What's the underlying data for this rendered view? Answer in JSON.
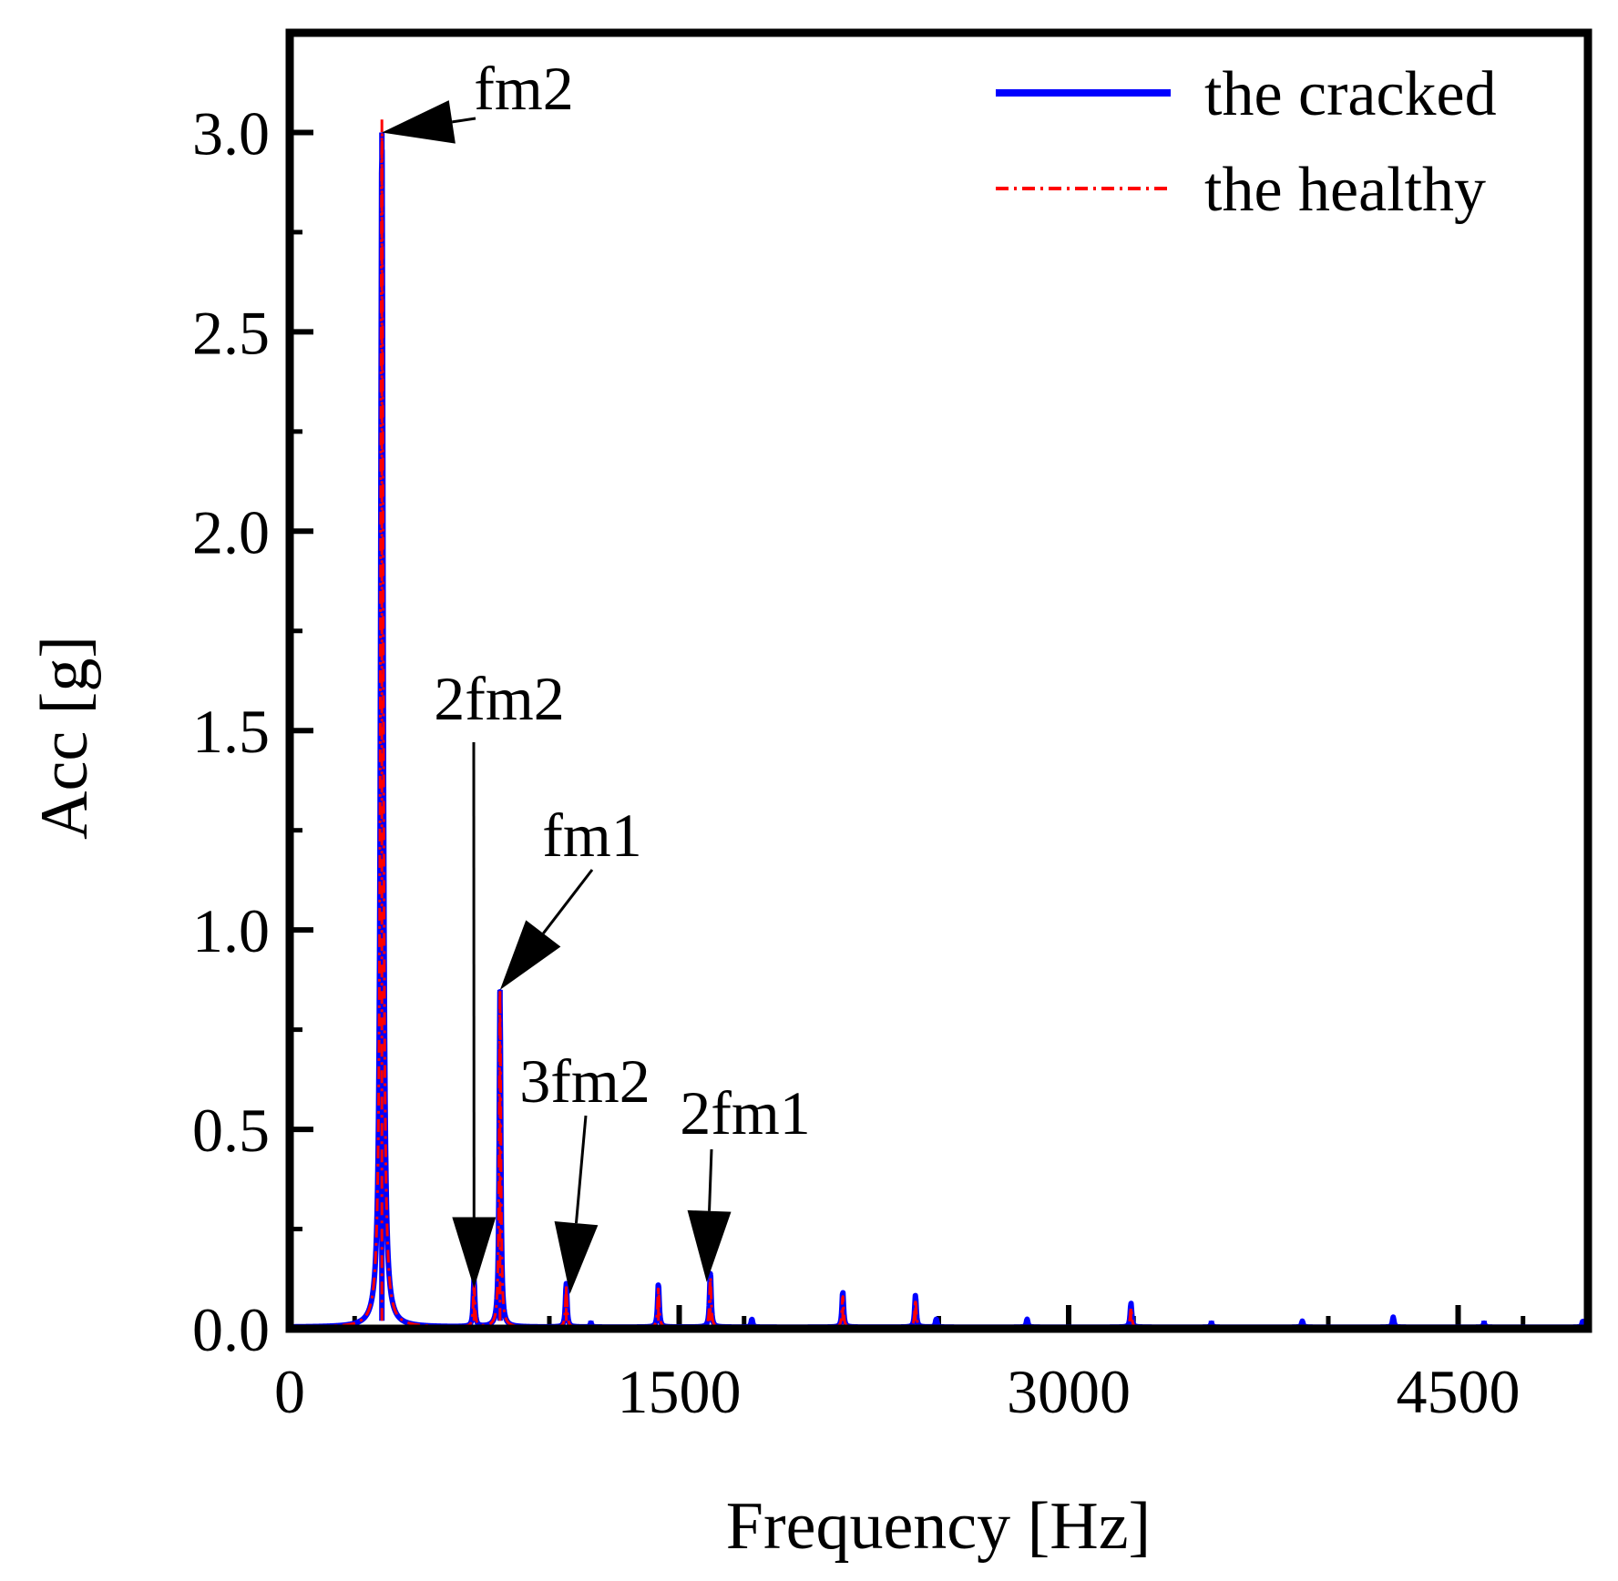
{
  "chart_data": {
    "type": "line",
    "title": "",
    "xlabel": "Frequency [Hz]",
    "ylabel": "Acc [g]",
    "xlim": [
      0,
      5000
    ],
    "ylim": [
      0,
      3.25
    ],
    "xticks": [
      0,
      1500,
      3000,
      4500
    ],
    "xtick_labels": [
      "0",
      "1500",
      "3000",
      "4500"
    ],
    "yticks": [
      0.0,
      0.5,
      1.0,
      1.5,
      2.0,
      2.5,
      3.0
    ],
    "ytick_labels": [
      "0.0",
      "0.5",
      "1.0",
      "1.5",
      "2.0",
      "2.5",
      "3.0"
    ],
    "legend_position": "top-right",
    "series": [
      {
        "name": "the cracked",
        "color": "#0000ff",
        "style": "solid",
        "peaks": [
          {
            "x": 355,
            "y": 3.0
          },
          {
            "x": 710,
            "y": 0.12
          },
          {
            "x": 810,
            "y": 0.85
          },
          {
            "x": 1065,
            "y": 0.11
          },
          {
            "x": 1160,
            "y": 0.01
          },
          {
            "x": 1420,
            "y": 0.11
          },
          {
            "x": 1620,
            "y": 0.14
          },
          {
            "x": 1780,
            "y": 0.02
          },
          {
            "x": 2130,
            "y": 0.09
          },
          {
            "x": 2410,
            "y": 0.08
          },
          {
            "x": 2490,
            "y": 0.02
          },
          {
            "x": 2840,
            "y": 0.02
          },
          {
            "x": 3240,
            "y": 0.06
          },
          {
            "x": 3550,
            "y": 0.01
          },
          {
            "x": 3900,
            "y": 0.015
          },
          {
            "x": 4250,
            "y": 0.025
          },
          {
            "x": 4600,
            "y": 0.01
          },
          {
            "x": 4980,
            "y": 0.015
          }
        ]
      },
      {
        "name": "the healthy",
        "color": "#ff0000",
        "style": "dashdot",
        "peaks": [
          {
            "x": 355,
            "y": 3.04
          },
          {
            "x": 710,
            "y": 0.11
          },
          {
            "x": 810,
            "y": 0.85
          },
          {
            "x": 1065,
            "y": 0.1
          },
          {
            "x": 1420,
            "y": 0.1
          },
          {
            "x": 1620,
            "y": 0.13
          },
          {
            "x": 2130,
            "y": 0.08
          },
          {
            "x": 2410,
            "y": 0.07
          },
          {
            "x": 3240,
            "y": 0.05
          }
        ]
      }
    ],
    "annotations": [
      {
        "text": "fm2",
        "target_x": 355,
        "target_y": 3.0
      },
      {
        "text": "2fm2",
        "target_x": 710,
        "target_y": 0.12
      },
      {
        "text": "fm1",
        "target_x": 810,
        "target_y": 0.85
      },
      {
        "text": "3fm2",
        "target_x": 1065,
        "target_y": 0.11
      },
      {
        "text": "2fm1",
        "target_x": 1620,
        "target_y": 0.14
      }
    ]
  }
}
